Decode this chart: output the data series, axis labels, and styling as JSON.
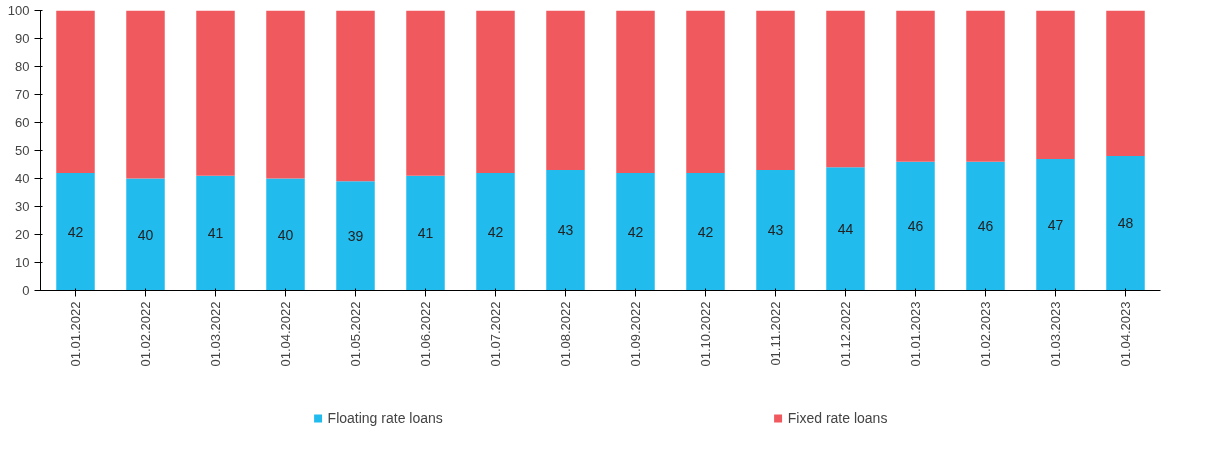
{
  "chart_data": {
    "type": "bar",
    "stacked": true,
    "categories": [
      "01.01.2022",
      "01.02.2022",
      "01.03.2022",
      "01.04.2022",
      "01.05.2022",
      "01.06.2022",
      "01.07.2022",
      "01.08.2022",
      "01.09.2022",
      "01.10.2022",
      "01.11.2022",
      "01.12.2022",
      "01.01.2023",
      "01.02.2023",
      "01.03.2023",
      "01.04.2023"
    ],
    "series": [
      {
        "name": "Floating rate loans",
        "color": "#22bbee",
        "values": [
          42,
          40,
          41,
          40,
          39,
          41,
          42,
          43,
          42,
          42,
          43,
          44,
          46,
          46,
          47,
          48
        ],
        "value_labels": [
          "42",
          "40",
          "41",
          "40",
          "39",
          "41",
          "42",
          "43",
          "42",
          "42",
          "43",
          "44",
          "46",
          "46",
          "47",
          "48"
        ]
      },
      {
        "name": "Fixed rate loans",
        "color": "#f05a5f",
        "values": [
          58,
          60,
          59,
          60,
          61,
          59,
          58,
          57,
          58,
          58,
          57,
          56,
          54,
          54,
          53,
          52
        ]
      }
    ],
    "ylim": [
      0,
      100
    ],
    "yticks": [
      0,
      10,
      20,
      30,
      40,
      50,
      60,
      70,
      80,
      90,
      100
    ],
    "grid": false,
    "legend": "bottom"
  }
}
